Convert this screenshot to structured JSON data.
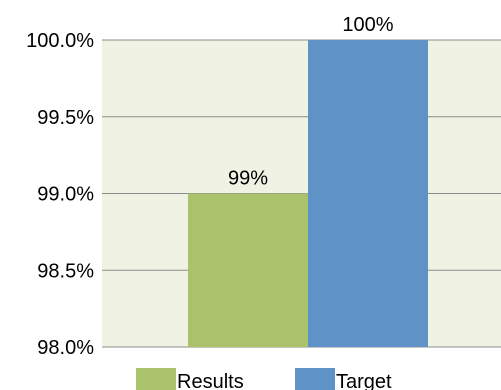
{
  "chart_data": {
    "type": "bar",
    "categories": [
      ""
    ],
    "series": [
      {
        "name": "Results",
        "values": [
          99
        ],
        "color": "#a9c26b",
        "label": "99%"
      },
      {
        "name": "Target",
        "values": [
          100
        ],
        "color": "#5f93c8",
        "label": "100%"
      }
    ],
    "ylim": [
      98.0,
      100.0
    ],
    "yticks": [
      {
        "value": 98.0,
        "label": "98.0%"
      },
      {
        "value": 98.5,
        "label": "98.5%"
      },
      {
        "value": 99.0,
        "label": "99.0%"
      },
      {
        "value": 99.5,
        "label": "99.5%"
      },
      {
        "value": 100.0,
        "label": "100.0%"
      }
    ],
    "title": "",
    "xlabel": "",
    "ylabel": "",
    "grid": true,
    "legend": "bottom",
    "plot_background": "#f0f2e4",
    "gridline_color": "#8c8c8c"
  }
}
